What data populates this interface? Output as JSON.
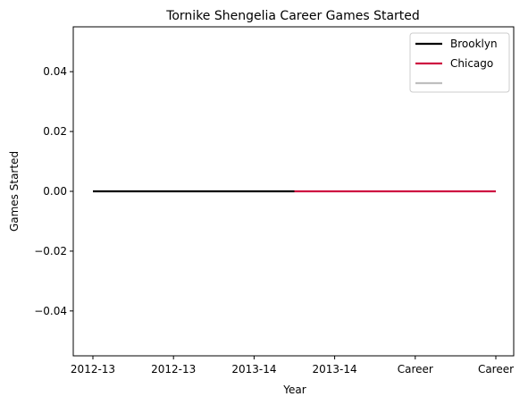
{
  "chart_data": {
    "type": "line",
    "title": "Tornike Shengelia Career Games Started",
    "xlabel": "Year",
    "ylabel": "Games Started",
    "x_tick_labels": [
      "2012-13",
      "2012-13",
      "2013-14",
      "2013-14",
      "Career",
      "Career"
    ],
    "y_ticks": [
      -0.04,
      -0.02,
      0.0,
      0.02,
      0.04
    ],
    "y_tick_labels": [
      "−0.04",
      "−0.02",
      "0.00",
      "0.02",
      "0.04"
    ],
    "ylim": [
      -0.055,
      0.055
    ],
    "grid": false,
    "legend_position": "top-right",
    "series": [
      {
        "name": "Brooklyn",
        "color": "#000000",
        "x_index": [
          0,
          2.5
        ],
        "values": [
          0,
          0
        ]
      },
      {
        "name": "Chicago",
        "color": "#ce1141",
        "x_index": [
          2.5,
          5
        ],
        "values": [
          0,
          0
        ]
      },
      {
        "name": "",
        "color": "#bfbfbf",
        "x_index": [],
        "values": []
      }
    ]
  }
}
